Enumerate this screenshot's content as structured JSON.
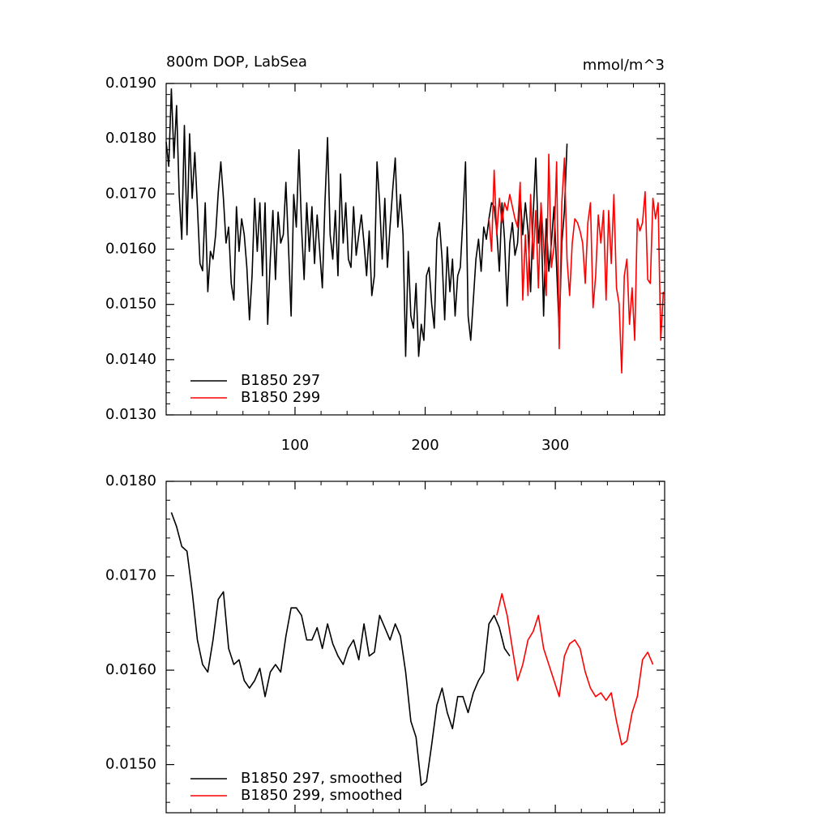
{
  "chart_data": [
    {
      "type": "line",
      "title": "800m DOP, LabSea",
      "units": "mmol/m^3",
      "xlim": [
        1,
        384
      ],
      "xticks": [
        100,
        200,
        300
      ],
      "ylim": [
        0.013,
        0.019
      ],
      "yticks": [
        {
          "value": 0.013,
          "label": "0.0130"
        },
        {
          "value": 0.014,
          "label": "0.0140"
        },
        {
          "value": 0.015,
          "label": "0.0150"
        },
        {
          "value": 0.016,
          "label": "0.0160"
        },
        {
          "value": 0.017,
          "label": "0.0170"
        },
        {
          "value": 0.018,
          "label": "0.0180"
        },
        {
          "value": 0.019,
          "label": "0.0190"
        }
      ],
      "legend": "bottom-left",
      "series": [
        {
          "name": "B1850 297",
          "color": "#000000",
          "x": [
            1,
            3,
            5,
            7,
            9,
            11,
            13,
            15,
            17,
            19,
            21,
            23,
            25,
            27,
            29,
            31,
            33,
            35,
            37,
            39,
            41,
            43,
            45,
            47,
            49,
            51,
            53,
            55,
            57,
            59,
            61,
            63,
            65,
            67,
            69,
            71,
            73,
            75,
            77,
            79,
            81,
            83,
            85,
            87,
            89,
            91,
            93,
            95,
            97,
            99,
            101,
            103,
            105,
            107,
            109,
            111,
            113,
            115,
            117,
            119,
            121,
            123,
            125,
            127,
            129,
            131,
            133,
            135,
            137,
            139,
            141,
            143,
            145,
            147,
            149,
            151,
            153,
            155,
            157,
            159,
            161,
            163,
            165,
            167,
            169,
            171,
            173,
            175,
            177,
            179,
            181,
            183,
            185,
            187,
            189,
            191,
            193,
            195,
            197,
            199,
            201,
            203,
            205,
            207,
            209,
            211,
            213,
            215,
            217,
            219,
            221,
            223,
            225,
            227,
            229,
            231,
            233,
            235,
            237,
            239,
            241,
            243,
            245,
            247,
            249,
            251,
            253,
            255,
            257,
            259,
            261,
            263,
            265,
            267,
            269,
            271,
            273,
            275,
            277,
            279,
            281,
            283,
            285,
            287,
            289,
            291,
            293,
            295,
            297,
            299,
            301,
            303,
            305,
            307,
            309
          ],
          "values": [
            0.01794,
            0.0175,
            0.0189,
            0.01765,
            0.0186,
            0.01699,
            0.01618,
            0.01824,
            0.01626,
            0.01809,
            0.01692,
            0.01775,
            0.01677,
            0.01574,
            0.01561,
            0.01684,
            0.01523,
            0.01596,
            0.01582,
            0.01626,
            0.01702,
            0.01758,
            0.01692,
            0.01611,
            0.0164,
            0.01538,
            0.01508,
            0.01677,
            0.01596,
            0.01655,
            0.01626,
            0.01567,
            0.01472,
            0.01552,
            0.01692,
            0.01596,
            0.01684,
            0.01552,
            0.01684,
            0.01464,
            0.01582,
            0.0167,
            0.01545,
            0.01667,
            0.01611,
            0.01626,
            0.01721,
            0.01604,
            0.01479,
            0.01699,
            0.0164,
            0.0178,
            0.0164,
            0.01545,
            0.01684,
            0.01596,
            0.01677,
            0.01574,
            0.01662,
            0.01596,
            0.0153,
            0.01684,
            0.01802,
            0.01626,
            0.01582,
            0.0167,
            0.01552,
            0.01736,
            0.01611,
            0.01684,
            0.01582,
            0.01567,
            0.01677,
            0.01589,
            0.01626,
            0.01662,
            0.01611,
            0.01552,
            0.01633,
            0.01516,
            0.01552,
            0.01758,
            0.01684,
            0.01582,
            0.01692,
            0.01567,
            0.0164,
            0.01706,
            0.01765,
            0.0164,
            0.01699,
            0.01626,
            0.01406,
            0.01596,
            0.01479,
            0.01457,
            0.01538,
            0.01406,
            0.01464,
            0.01435,
            0.01552,
            0.01567,
            0.01501,
            0.01457,
            0.01618,
            0.01648,
            0.01582,
            0.01472,
            0.01604,
            0.01523,
            0.01582,
            0.01479,
            0.01552,
            0.01567,
            0.01655,
            0.01758,
            0.01479,
            0.01435,
            0.01508,
            0.01582,
            0.01618,
            0.0156,
            0.0164,
            0.01618,
            0.01655,
            0.01684,
            0.01677,
            0.01633,
            0.0156,
            0.01684,
            0.01618,
            0.01497,
            0.01611,
            0.01648,
            0.01589,
            0.01611,
            0.01699,
            0.01626,
            0.01684,
            0.01633,
            0.01523,
            0.01662,
            0.01765,
            0.01611,
            0.0167,
            0.01479,
            0.01655,
            0.0156,
            0.01611,
            0.01677,
            0.01567,
            0.0145,
            0.01611,
            0.0167,
            0.01791
          ]
        },
        {
          "name": "B1850 299",
          "color": "#ff0000",
          "x": [
            249,
            251,
            253,
            255,
            257,
            259,
            261,
            263,
            265,
            267,
            269,
            271,
            273,
            275,
            277,
            279,
            281,
            283,
            285,
            287,
            289,
            291,
            293,
            295,
            297,
            299,
            301,
            303,
            305,
            307,
            309,
            311,
            313,
            315,
            317,
            319,
            321,
            323,
            325,
            327,
            329,
            331,
            333,
            335,
            337,
            339,
            341,
            343,
            345,
            347,
            349,
            351,
            353,
            355,
            357,
            359,
            361,
            363,
            365,
            367,
            369,
            371,
            373,
            375,
            377,
            379,
            381,
            383
          ],
          "values": [
            0.01655,
            0.01596,
            0.01743,
            0.01626,
            0.01692,
            0.01648,
            0.01684,
            0.0167,
            0.01699,
            0.01677,
            0.01655,
            0.0164,
            0.01721,
            0.01508,
            0.01626,
            0.01516,
            0.01699,
            0.01582,
            0.0167,
            0.0153,
            0.01684,
            0.01611,
            0.01516,
            0.01772,
            0.01567,
            0.01604,
            0.01758,
            0.0142,
            0.01684,
            0.01765,
            0.01582,
            0.01516,
            0.01611,
            0.01655,
            0.01648,
            0.01633,
            0.01611,
            0.01538,
            0.01648,
            0.01684,
            0.01494,
            0.01552,
            0.01662,
            0.01611,
            0.0167,
            0.01508,
            0.0167,
            0.01574,
            0.01699,
            0.0153,
            0.01501,
            0.01376,
            0.01552,
            0.01582,
            0.01464,
            0.0153,
            0.01435,
            0.01655,
            0.01633,
            0.01648,
            0.01704,
            0.01545,
            0.01538,
            0.01692,
            0.01655,
            0.01684,
            0.01435,
            0.01523
          ]
        }
      ]
    },
    {
      "type": "line",
      "xlim": [
        1,
        384
      ],
      "ylim": [
        0.01449,
        0.018
      ],
      "yticks": [
        {
          "value": 0.015,
          "label": "0.0150"
        },
        {
          "value": 0.016,
          "label": "0.0160"
        },
        {
          "value": 0.017,
          "label": "0.0170"
        },
        {
          "value": 0.018,
          "label": "0.0180"
        }
      ],
      "legend": "bottom-left",
      "series": [
        {
          "name": "B1850 297, smoothed",
          "color": "#000000",
          "x": [
            5,
            9,
            13,
            17,
            21,
            25,
            29,
            33,
            37,
            41,
            45,
            49,
            53,
            57,
            61,
            65,
            69,
            73,
            77,
            81,
            85,
            89,
            93,
            97,
            101,
            105,
            109,
            113,
            117,
            121,
            125,
            129,
            133,
            137,
            141,
            145,
            149,
            153,
            157,
            161,
            165,
            169,
            173,
            177,
            181,
            185,
            189,
            193,
            197,
            201,
            205,
            209,
            213,
            217,
            221,
            225,
            229,
            233,
            237,
            241,
            245,
            249,
            253,
            257,
            261,
            265
          ],
          "values": [
            0.01767,
            0.01752,
            0.01731,
            0.01726,
            0.01683,
            0.01632,
            0.01606,
            0.01598,
            0.01632,
            0.01675,
            0.01683,
            0.01623,
            0.01606,
            0.01611,
            0.01589,
            0.01581,
            0.01589,
            0.01602,
            0.01572,
            0.01598,
            0.01606,
            0.01598,
            0.01636,
            0.01666,
            0.01666,
            0.01658,
            0.01632,
            0.01632,
            0.01645,
            0.01623,
            0.01649,
            0.01628,
            0.01615,
            0.01606,
            0.01623,
            0.01632,
            0.01611,
            0.01649,
            0.01615,
            0.01619,
            0.01658,
            0.01645,
            0.01632,
            0.01649,
            0.01636,
            0.01598,
            0.01546,
            0.01529,
            0.01478,
            0.01482,
            0.01521,
            0.01563,
            0.01581,
            0.01555,
            0.01538,
            0.01572,
            0.01572,
            0.01555,
            0.01576,
            0.01589,
            0.01598,
            0.01649,
            0.01658,
            0.01645,
            0.01623,
            0.01615
          ]
        },
        {
          "name": "B1850 299, smoothed",
          "color": "#ff0000",
          "x": [
            255,
            259,
            263,
            267,
            271,
            275,
            279,
            283,
            287,
            291,
            295,
            299,
            303,
            307,
            311,
            315,
            319,
            323,
            327,
            331,
            335,
            339,
            343,
            347,
            351,
            355,
            359,
            363,
            367,
            371,
            375
          ],
          "values": [
            0.01658,
            0.01681,
            0.01658,
            0.01623,
            0.01589,
            0.01606,
            0.01632,
            0.01641,
            0.01658,
            0.01623,
            0.01606,
            0.01589,
            0.01572,
            0.01615,
            0.01628,
            0.01632,
            0.01623,
            0.01598,
            0.01581,
            0.01572,
            0.01576,
            0.01568,
            0.01576,
            0.01546,
            0.01521,
            0.01525,
            0.01555,
            0.01572,
            0.01611,
            0.01619,
            0.01606
          ]
        }
      ]
    }
  ]
}
